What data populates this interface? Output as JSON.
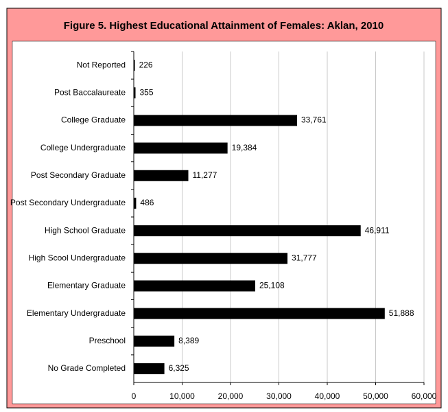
{
  "chart_data": {
    "type": "bar",
    "orientation": "horizontal",
    "title": "Figure 5. Highest Educational Attainment of Females: Aklan, 2010",
    "categories": [
      "Not Reported",
      "Post Baccalaureate",
      "College Graduate",
      "College Undergraduate",
      "Post Secondary Graduate",
      "Post Secondary Undergraduate",
      "High School Graduate",
      "High Scool Undergraduate",
      "Elementary Graduate",
      "Elementary Undergraduate",
      "Preschool",
      "No Grade Completed"
    ],
    "values": [
      226,
      355,
      33761,
      19384,
      11277,
      486,
      46911,
      31777,
      25108,
      51888,
      8389,
      6325
    ],
    "value_labels": [
      "226",
      "355",
      "33,761",
      "19,384",
      "11,277",
      "486",
      "46,911",
      "31,777",
      "25,108",
      "51,888",
      "8,389",
      "6,325"
    ],
    "color": "#000000",
    "xlim": [
      0,
      60000
    ],
    "xticks": [
      0,
      {
        "value": 10000,
        "label": "10,000"
      },
      {
        "value": 20000,
        "label": "20,000"
      },
      {
        "value": 30000,
        "label": "30,000"
      },
      {
        "value": 40000,
        "label": "40,000"
      },
      {
        "value": 50000,
        "label": "50,000"
      },
      {
        "value": 60000,
        "label": "60,000"
      }
    ],
    "grid": true
  }
}
